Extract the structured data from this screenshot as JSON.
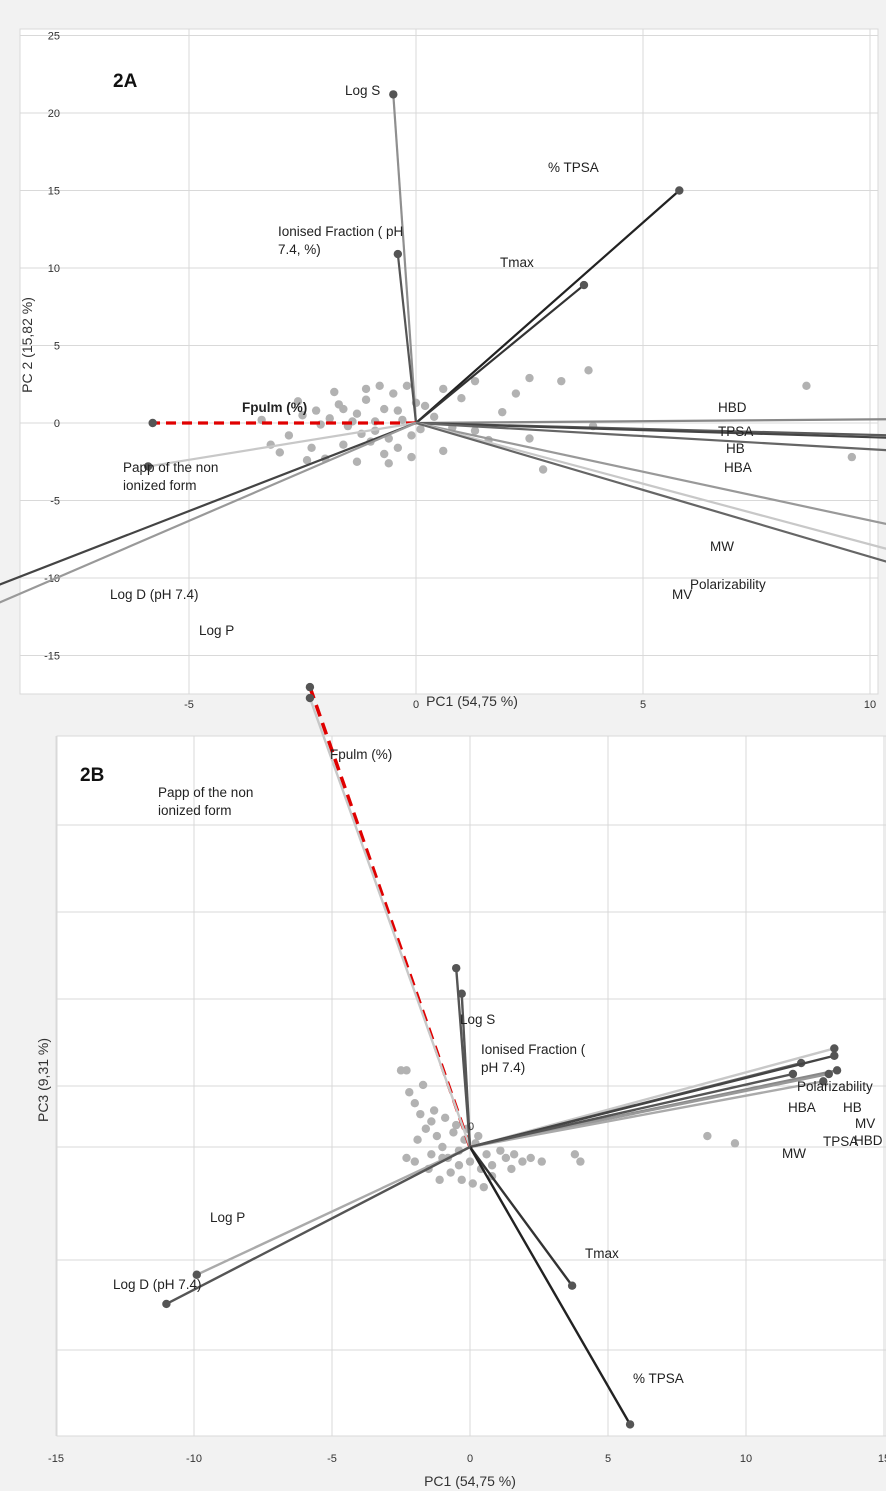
{
  "chart_data": [
    {
      "type": "scatter",
      "panel_label": "2A",
      "xlabel": "PC1 (54,75 %)",
      "ylabel": "PC 2 (15,82 %)",
      "xlim": [
        -15,
        20
      ],
      "ylim": [
        -15,
        25
      ],
      "xticks": [
        -15,
        -10,
        -5,
        0,
        5,
        10,
        15,
        20
      ],
      "yticks": [
        -15,
        -10,
        -5,
        0,
        5,
        10,
        15,
        20,
        25
      ],
      "grid": true,
      "vectors": [
        {
          "label": "Log S",
          "x": -0.5,
          "y": 21.2,
          "color": "#8f8f8f"
        },
        {
          "label": "% TPSA",
          "x": 5.8,
          "y": 15.0,
          "color": "#222222"
        },
        {
          "label": "Ionised Fraction ( pH 7.4, %)",
          "x": -0.4,
          "y": 10.9,
          "color": "#555555"
        },
        {
          "label": "Tmax",
          "x": 3.7,
          "y": 8.9,
          "color": "#333333"
        },
        {
          "label": "Fpulm (%)",
          "x": -5.8,
          "y": 0.0,
          "color": "#e00000",
          "dashed": true
        },
        {
          "label": "Papp of the non ionized form",
          "x": -5.9,
          "y": -2.8,
          "color": "#c8c8c8"
        },
        {
          "label": "HBD",
          "x": 12.8,
          "y": 0.3,
          "color": "#888888"
        },
        {
          "label": "TPSA",
          "x": 13.1,
          "y": -1.0,
          "color": "#5a5a5a"
        },
        {
          "label": "HB",
          "x": 13.1,
          "y": -1.2,
          "color": "#444444"
        },
        {
          "label": "HBA",
          "x": 13.0,
          "y": -2.2,
          "color": "#666666"
        },
        {
          "label": "MW",
          "x": 12.4,
          "y": -7.8,
          "color": "#999999"
        },
        {
          "label": "Polarizability",
          "x": 12.0,
          "y": -9.4,
          "color": "#c8c8c8"
        },
        {
          "label": "MV",
          "x": 11.7,
          "y": -10.1,
          "color": "#666666"
        },
        {
          "label": "Log D (pH 7.4)",
          "x": -11.0,
          "y": -12.5,
          "color": "#444444"
        },
        {
          "label": "Log P",
          "x": -9.9,
          "y": -12.5,
          "color": "#999999"
        }
      ],
      "points": [
        [
          -2.5,
          0.5
        ],
        [
          -2.2,
          0.8
        ],
        [
          -1.9,
          0.3
        ],
        [
          -1.7,
          1.2
        ],
        [
          -1.5,
          -0.2
        ],
        [
          -1.3,
          0.6
        ],
        [
          -1.1,
          1.5
        ],
        [
          -0.9,
          -0.5
        ],
        [
          -0.7,
          0.9
        ],
        [
          -0.5,
          1.9
        ],
        [
          -0.3,
          0.2
        ],
        [
          -0.1,
          -0.8
        ],
        [
          0.2,
          1.1
        ],
        [
          0.4,
          0.4
        ],
        [
          0.6,
          2.2
        ],
        [
          0.8,
          -0.3
        ],
        [
          1.0,
          1.6
        ],
        [
          1.3,
          2.7
        ],
        [
          1.6,
          -1.1
        ],
        [
          1.9,
          0.7
        ],
        [
          2.2,
          1.9
        ],
        [
          2.5,
          2.9
        ],
        [
          2.8,
          -3.0
        ],
        [
          3.2,
          2.7
        ],
        [
          3.8,
          3.4
        ],
        [
          -2.8,
          -0.8
        ],
        [
          -2.3,
          -1.6
        ],
        [
          -2.0,
          -2.3
        ],
        [
          -1.6,
          -1.4
        ],
        [
          -1.3,
          -2.5
        ],
        [
          -1.0,
          -1.2
        ],
        [
          -0.7,
          -2.0
        ],
        [
          -0.4,
          -1.6
        ],
        [
          -0.1,
          -2.2
        ],
        [
          -3.0,
          -1.9
        ],
        [
          0.6,
          -1.8
        ],
        [
          1.3,
          -0.5
        ],
        [
          -2.6,
          1.4
        ],
        [
          -1.8,
          2.0
        ],
        [
          -0.8,
          2.4
        ],
        [
          -0.2,
          2.4
        ],
        [
          0.1,
          -0.4
        ],
        [
          -1.4,
          0.1
        ],
        [
          -2.1,
          -0.1
        ],
        [
          -1.2,
          -0.7
        ],
        [
          -0.6,
          -1.0
        ],
        [
          -3.4,
          0.2
        ],
        [
          -2.4,
          -2.4
        ],
        [
          -1.6,
          0.9
        ],
        [
          -0.9,
          0.1
        ],
        [
          2.5,
          -1.0
        ],
        [
          3.9,
          -0.2
        ],
        [
          8.6,
          2.4
        ],
        [
          9.6,
          -2.2
        ],
        [
          17.3,
          -3.1
        ],
        [
          -3.2,
          -1.4
        ],
        [
          -0.4,
          0.8
        ],
        [
          -1.1,
          2.2
        ],
        [
          0.0,
          1.3
        ],
        [
          -0.6,
          -2.6
        ]
      ]
    },
    {
      "type": "scatter",
      "panel_label": "2B",
      "xlabel": "PC1 (54,75 %)",
      "ylabel": "PC3 (9,31 %)",
      "xlim": [
        -15,
        15
      ],
      "xticks": [
        -15,
        -10,
        -5,
        0,
        5,
        10,
        15
      ],
      "grid": true,
      "origin_label": "0",
      "vectors": [
        {
          "label": "Fpulm (%)",
          "x": -5.8,
          "y": 12.6,
          "color": "#e00000",
          "dashed": true
        },
        {
          "label": "Papp of the non ionized form",
          "x": -5.8,
          "y": 12.3,
          "color": "#c8c8c8"
        },
        {
          "label": "Log S",
          "x": -0.5,
          "y": 4.9,
          "color": "#555555"
        },
        {
          "label": "Ionised Fraction ( pH 7.4)",
          "x": -0.3,
          "y": 4.2,
          "color": "#555555"
        },
        {
          "label": "Polarizability",
          "x": 13.2,
          "y": 2.7,
          "color": "#c8c8c8"
        },
        {
          "label": "HBA",
          "x": 12.0,
          "y": 2.3,
          "color": "#666666"
        },
        {
          "label": "HB",
          "x": 13.2,
          "y": 2.5,
          "color": "#444444"
        },
        {
          "label": "MV",
          "x": 13.3,
          "y": 2.1,
          "color": "#888888"
        },
        {
          "label": "HBD",
          "x": 13.0,
          "y": 2.0,
          "color": "#999999"
        },
        {
          "label": "TPSA",
          "x": 12.8,
          "y": 1.8,
          "color": "#aaaaaa"
        },
        {
          "label": "MW",
          "x": 11.7,
          "y": 2.0,
          "color": "#555555"
        },
        {
          "label": "Tmax",
          "x": 3.7,
          "y": -3.8,
          "color": "#333333"
        },
        {
          "label": "% TPSA",
          "x": 5.8,
          "y": -7.6,
          "color": "#222222"
        },
        {
          "label": "Log P",
          "x": -9.9,
          "y": -3.5,
          "color": "#aaaaaa"
        },
        {
          "label": "Log D (pH 7.4)",
          "x": -11.0,
          "y": -4.3,
          "color": "#555555"
        }
      ],
      "points": [
        [
          -2.5,
          2.1
        ],
        [
          -2.3,
          2.1
        ],
        [
          -2.2,
          1.5
        ],
        [
          -2.0,
          1.2
        ],
        [
          -1.8,
          0.9
        ],
        [
          -1.6,
          0.5
        ],
        [
          -1.4,
          0.7
        ],
        [
          -1.2,
          0.3
        ],
        [
          -1.0,
          0.0
        ],
        [
          -0.8,
          -0.3
        ],
        [
          -0.6,
          0.4
        ],
        [
          -0.4,
          -0.1
        ],
        [
          -0.2,
          0.2
        ],
        [
          0.0,
          -0.4
        ],
        [
          0.2,
          0.1
        ],
        [
          0.4,
          -0.6
        ],
        [
          0.6,
          -0.2
        ],
        [
          0.8,
          -0.5
        ],
        [
          1.1,
          -0.1
        ],
        [
          1.3,
          -0.3
        ],
        [
          1.6,
          -0.2
        ],
        [
          1.9,
          -0.4
        ],
        [
          2.2,
          -0.3
        ],
        [
          2.6,
          -0.4
        ],
        [
          3.8,
          -0.2
        ],
        [
          4.0,
          -0.4
        ],
        [
          8.6,
          0.3
        ],
        [
          9.6,
          0.1
        ],
        [
          -2.0,
          -0.4
        ],
        [
          -2.3,
          -0.3
        ],
        [
          -1.5,
          -0.6
        ],
        [
          -1.1,
          -0.9
        ],
        [
          -0.7,
          -0.7
        ],
        [
          -0.3,
          -0.9
        ],
        [
          0.1,
          -1.0
        ],
        [
          0.5,
          -1.1
        ],
        [
          -1.7,
          1.7
        ],
        [
          -1.3,
          1.0
        ],
        [
          -0.9,
          0.8
        ],
        [
          -0.5,
          0.6
        ],
        [
          -0.1,
          0.5
        ],
        [
          0.3,
          0.3
        ],
        [
          -1.9,
          0.2
        ],
        [
          -1.0,
          -0.3
        ],
        [
          -0.4,
          -0.5
        ],
        [
          1.5,
          -0.6
        ],
        [
          0.8,
          -0.8
        ],
        [
          -1.4,
          -0.2
        ]
      ]
    }
  ]
}
